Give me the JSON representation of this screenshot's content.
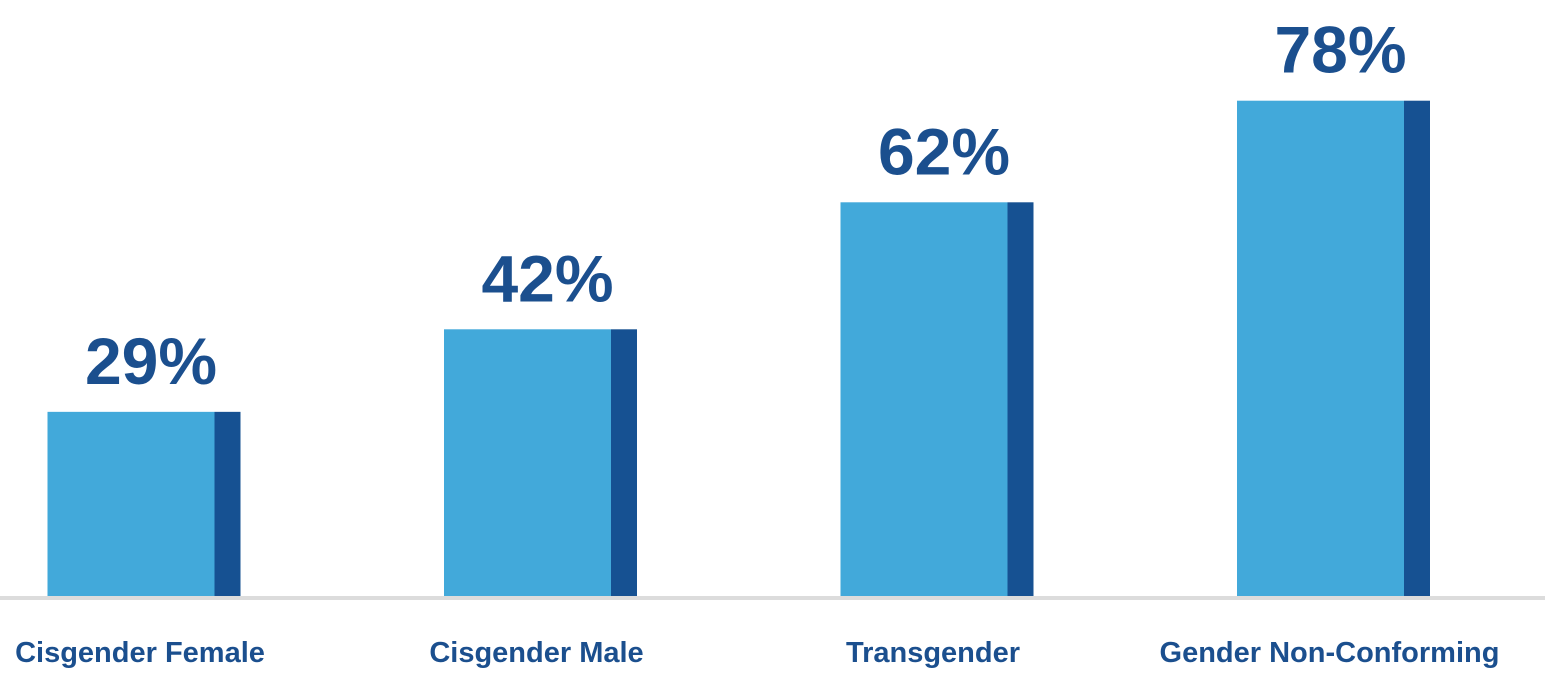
{
  "chart_data": {
    "type": "bar",
    "categories": [
      "Cisgender Female",
      "Cisgender Male",
      "Transgender",
      "Gender Non-Conforming"
    ],
    "values": [
      29,
      42,
      62,
      78
    ],
    "value_labels": [
      "29%",
      "42%",
      "62%",
      "78%"
    ],
    "color": "#42a9da",
    "shade_color": "#165192",
    "label_color": "#1b4f8e"
  }
}
